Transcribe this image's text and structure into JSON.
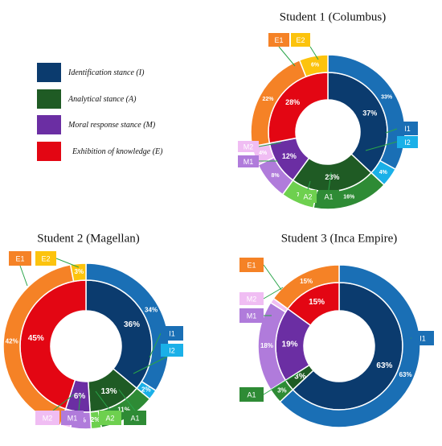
{
  "colors": {
    "I_inner": "#0b3b6e",
    "I1": "#1a6fb5",
    "I2": "#1ab0e8",
    "A_inner": "#1f5b24",
    "A1": "#2e8b35",
    "A2": "#6ed04f",
    "M_inner": "#6b2ea3",
    "M1": "#b07bdb",
    "M2": "#f0bdf3",
    "E_inner": "#e30613",
    "E1": "#f58226",
    "E2": "#fcc30d",
    "line": "#2aa54a"
  },
  "legend": [
    {
      "key": "I",
      "label": "Identification stance (I)",
      "color": "#0b3b6e"
    },
    {
      "key": "A",
      "label": "Analytical stance (A)",
      "color": "#1f5b24"
    },
    {
      "key": "M",
      "label": "Moral response stance (M)",
      "color": "#6b2ea3"
    },
    {
      "key": "E",
      "label": "Exhibition of knowledge (E)",
      "color": "#e30613"
    }
  ],
  "chart_data": [
    {
      "type": "pie",
      "title": "Student 1 (Columbus)",
      "inner": [
        {
          "label": "I",
          "value": 37,
          "text": "37%"
        },
        {
          "label": "A",
          "value": 23,
          "text": "23%"
        },
        {
          "label": "M",
          "value": 12,
          "text": "12%"
        },
        {
          "label": "E",
          "value": 28,
          "text": "28%"
        }
      ],
      "outer": [
        {
          "label": "I1",
          "value": 33,
          "text": "33%"
        },
        {
          "label": "I2",
          "value": 4,
          "text": "4%"
        },
        {
          "label": "A1",
          "value": 16,
          "text": "16%"
        },
        {
          "label": "A2",
          "value": 7,
          "text": "7%"
        },
        {
          "label": "M1",
          "value": 8,
          "text": "8%"
        },
        {
          "label": "M2",
          "value": 4,
          "text": "4%"
        },
        {
          "label": "E1",
          "value": 22,
          "text": "22%"
        },
        {
          "label": "E2",
          "value": 6,
          "text": "6%"
        }
      ],
      "callouts": [
        "I1",
        "I2",
        "A2",
        "A1",
        "M1",
        "M2",
        "E1",
        "E2"
      ]
    },
    {
      "type": "pie",
      "title": "Student 2 (Magellan)",
      "inner": [
        {
          "label": "I",
          "value": 36,
          "text": "36%"
        },
        {
          "label": "A",
          "value": 13,
          "text": "13%"
        },
        {
          "label": "M",
          "value": 6,
          "text": "6%"
        },
        {
          "label": "E",
          "value": 45,
          "text": "45%"
        }
      ],
      "outer": [
        {
          "label": "I1",
          "value": 34,
          "text": "34%"
        },
        {
          "label": "I2",
          "value": 2,
          "text": "2%"
        },
        {
          "label": "A1",
          "value": 11,
          "text": "11%"
        },
        {
          "label": "A2",
          "value": 2,
          "text": "2%"
        },
        {
          "label": "M1",
          "value": 4,
          "text": "4%"
        },
        {
          "label": "M2",
          "value": 2,
          "text": "2%"
        },
        {
          "label": "E1",
          "value": 42,
          "text": "42%"
        },
        {
          "label": "E2",
          "value": 3,
          "text": "3%"
        }
      ],
      "callouts": [
        "I1",
        "I2",
        "A2",
        "A1",
        "M1",
        "M2",
        "E1",
        "E2"
      ]
    },
    {
      "type": "pie",
      "title": "Student 3 (Inca Empire)",
      "inner": [
        {
          "label": "I",
          "value": 63,
          "text": "63%"
        },
        {
          "label": "A",
          "value": 3,
          "text": "3%"
        },
        {
          "label": "M",
          "value": 19,
          "text": "19%"
        },
        {
          "label": "E",
          "value": 15,
          "text": "15%"
        }
      ],
      "outer": [
        {
          "label": "I1",
          "value": 63,
          "text": "63%"
        },
        {
          "label": "A1",
          "value": 3,
          "text": "3%"
        },
        {
          "label": "M1",
          "value": 18,
          "text": "18%"
        },
        {
          "label": "M2",
          "value": 1,
          "text": ""
        },
        {
          "label": "E1",
          "value": 15,
          "text": "15%"
        }
      ],
      "callouts": [
        "I1",
        "A1",
        "M1",
        "M2",
        "E1"
      ]
    }
  ]
}
